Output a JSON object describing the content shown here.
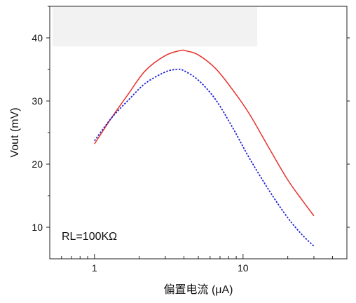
{
  "chart_data": {
    "type": "line",
    "xlabel": "偏置电流 (μA)",
    "ylabel": "Vout (mV)",
    "x_scale": "log",
    "xlim": [
      0.5,
      50
    ],
    "ylim": [
      5,
      45
    ],
    "x_ticks": [
      1,
      10
    ],
    "y_ticks": [
      10,
      20,
      30,
      40
    ],
    "grid": false,
    "legend": "none",
    "annotation": "RL=100KΩ",
    "series": [
      {
        "color": "#e8322e",
        "style": "solid",
        "x": [
          1.0,
          1.3,
          1.7,
          2.2,
          3.0,
          3.8,
          4.2,
          5.0,
          6.5,
          8.5,
          11,
          15,
          20,
          25,
          30
        ],
        "y": [
          23.2,
          27.3,
          31.2,
          34.8,
          37.2,
          38.0,
          37.9,
          37.3,
          35.2,
          31.8,
          28.0,
          22.5,
          17.5,
          14.3,
          11.8
        ]
      },
      {
        "color": "#1f24d6",
        "style": "dotted",
        "x": [
          1.0,
          1.3,
          1.7,
          2.2,
          3.0,
          3.6,
          4.0,
          5.0,
          6.5,
          8.5,
          11,
          15,
          20,
          25,
          30
        ],
        "y": [
          23.7,
          27.3,
          30.2,
          32.8,
          34.6,
          35.0,
          34.8,
          33.3,
          30.3,
          25.8,
          21.0,
          15.8,
          11.5,
          8.8,
          7.0
        ]
      }
    ]
  }
}
